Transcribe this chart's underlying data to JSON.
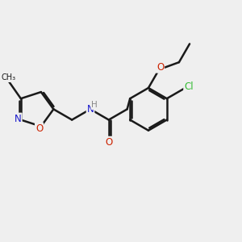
{
  "bg_color": "#efefef",
  "bond_color": "#1a1a1a",
  "bond_width": 1.8,
  "atom_colors": {
    "N": "#1a1acc",
    "O": "#cc2200",
    "Cl": "#33bb33",
    "H_grey": "#888888"
  },
  "font_size_atom": 8.5,
  "font_size_small": 7.0
}
